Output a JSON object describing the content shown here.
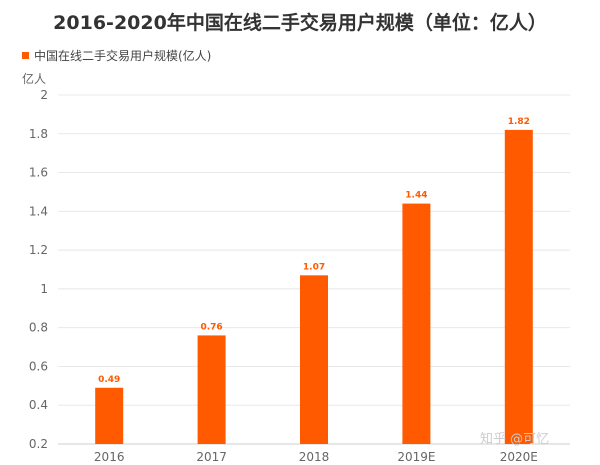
{
  "chart_data": {
    "type": "bar",
    "title": "2016-2020年中国在线二手交易用户规模（单位：亿人）",
    "legend": [
      "中国在线二手交易用户规模(亿人)"
    ],
    "legend_position": "top-left",
    "ylabel": "亿人",
    "xlabel": "",
    "categories": [
      "2016",
      "2017",
      "2018",
      "2019E",
      "2020E"
    ],
    "series": [
      {
        "name": "中国在线二手交易用户规模(亿人)",
        "values": [
          0.49,
          0.76,
          1.07,
          1.44,
          1.82
        ],
        "value_labels": [
          "0.49",
          "0.76",
          "1.07",
          "1.44",
          "1.82"
        ]
      }
    ],
    "ylim": [
      0.2,
      2
    ],
    "yticks": [
      {
        "value": 0.2,
        "label": "0.2"
      },
      {
        "value": 0.4,
        "label": "0.4"
      },
      {
        "value": 0.6,
        "label": "0.6"
      },
      {
        "value": 0.8,
        "label": "0.8"
      },
      {
        "value": 1.0,
        "label": "1"
      },
      {
        "value": 1.2,
        "label": "1.2"
      },
      {
        "value": 1.4,
        "label": "1.4"
      },
      {
        "value": 1.6,
        "label": "1.6"
      },
      {
        "value": 1.8,
        "label": "1.8"
      },
      {
        "value": 2.0,
        "label": "2"
      }
    ],
    "grid": true,
    "bar_color": "#ff5a00",
    "grid_color": "#e8e8e8"
  },
  "watermark": "知乎 @可忆"
}
